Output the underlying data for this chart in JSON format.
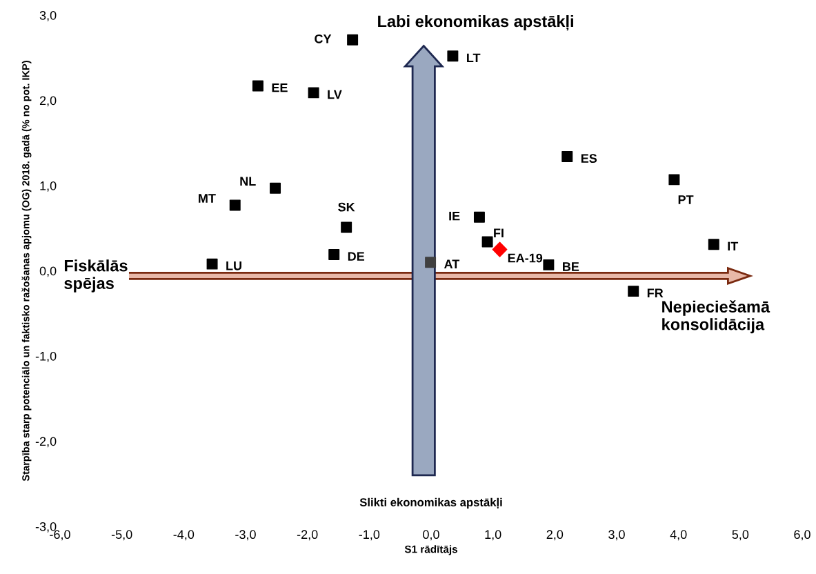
{
  "chart_data": {
    "type": "scatter",
    "xlabel": "S1 rādītājs",
    "ylabel": "Starpība starp potenciālo un faktisko ražošanas apjomu (OG) 2018. gadā (% no pot. IKP)",
    "xlim": [
      -6,
      6
    ],
    "ylim": [
      -3,
      3
    ],
    "xticks": [
      {
        "value": -6,
        "label": "-6,0"
      },
      {
        "value": -5,
        "label": "-5,0"
      },
      {
        "value": -4,
        "label": "-4,0"
      },
      {
        "value": -3,
        "label": "-3,0"
      },
      {
        "value": -2,
        "label": "-2,0"
      },
      {
        "value": -1,
        "label": "-1,0"
      },
      {
        "value": 0,
        "label": "0,0"
      },
      {
        "value": 1,
        "label": "1,0"
      },
      {
        "value": 2,
        "label": "2,0"
      },
      {
        "value": 3,
        "label": "3,0"
      },
      {
        "value": 4,
        "label": "4,0"
      },
      {
        "value": 5,
        "label": "5,0"
      },
      {
        "value": 6,
        "label": "6,0"
      }
    ],
    "yticks": [
      {
        "value": -3,
        "label": "-3,0"
      },
      {
        "value": -2,
        "label": "-2,0"
      },
      {
        "value": -1,
        "label": "-1,0"
      },
      {
        "value": 0,
        "label": "0,0"
      },
      {
        "value": 1,
        "label": "1,0"
      },
      {
        "value": 2,
        "label": "2,0"
      },
      {
        "value": 3,
        "label": "3,0"
      }
    ],
    "grid": false,
    "legend": false,
    "marker": "square",
    "annotations": [
      "Labi ekonomikas apstākļi",
      "Slikti ekonomikas apstākļi",
      "Fiskālās spējas",
      "Nepieciešamā konsolidācija"
    ],
    "series": [
      {
        "name": "CY",
        "color": "#000000",
        "x": [
          -1.27
        ],
        "values": [
          2.71
        ]
      },
      {
        "name": "LT",
        "color": "#000000",
        "x": [
          0.35
        ],
        "values": [
          2.52
        ]
      },
      {
        "name": "EE",
        "color": "#000000",
        "x": [
          -2.8
        ],
        "values": [
          2.17
        ]
      },
      {
        "name": "LV",
        "color": "#000000",
        "x": [
          -1.9
        ],
        "values": [
          2.09
        ]
      },
      {
        "name": "ES",
        "color": "#000000",
        "x": [
          2.2
        ],
        "values": [
          1.34
        ]
      },
      {
        "name": "PT",
        "color": "#000000",
        "x": [
          3.93
        ],
        "values": [
          1.07
        ]
      },
      {
        "name": "NL",
        "color": "#000000",
        "x": [
          -2.52
        ],
        "values": [
          0.97
        ]
      },
      {
        "name": "MT",
        "color": "#000000",
        "x": [
          -3.17
        ],
        "values": [
          0.77
        ]
      },
      {
        "name": "SK",
        "color": "#000000",
        "x": [
          -1.37
        ],
        "values": [
          0.51
        ]
      },
      {
        "name": "IE",
        "color": "#000000",
        "x": [
          0.78
        ],
        "values": [
          0.63
        ]
      },
      {
        "name": "FI",
        "color": "#000000",
        "x": [
          0.91
        ],
        "values": [
          0.34
        ]
      },
      {
        "name": "EA-19",
        "color": "#ff0000",
        "x": [
          1.11
        ],
        "values": [
          0.25
        ],
        "marker": "diamond"
      },
      {
        "name": "IT",
        "color": "#000000",
        "x": [
          4.57
        ],
        "values": [
          0.31
        ]
      },
      {
        "name": "DE",
        "color": "#000000",
        "x": [
          -1.57
        ],
        "values": [
          0.19
        ]
      },
      {
        "name": "LU",
        "color": "#000000",
        "x": [
          -3.54
        ],
        "values": [
          0.08
        ]
      },
      {
        "name": "AT",
        "color": "#404040",
        "x": [
          -0.01
        ],
        "values": [
          0.1
        ]
      },
      {
        "name": "BE",
        "color": "#000000",
        "x": [
          1.9
        ],
        "values": [
          0.07
        ]
      },
      {
        "name": "FR",
        "color": "#000000",
        "x": [
          3.27
        ],
        "values": [
          -0.24
        ]
      }
    ]
  }
}
